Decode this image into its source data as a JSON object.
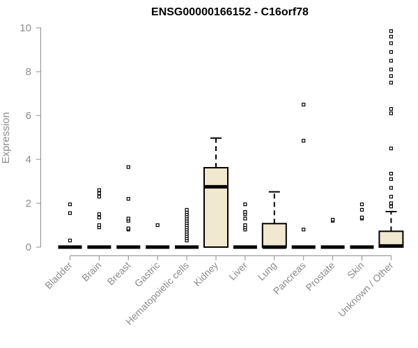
{
  "chart_data": {
    "type": "box",
    "title": "ENSG00000166152 - C16orf78",
    "ylabel": "Expression",
    "xlabel": "",
    "ylim": [
      0,
      10
    ],
    "yticks": [
      0,
      2,
      4,
      6,
      8,
      10
    ],
    "grid": false,
    "box_fill": "#f0e8cf",
    "categories": [
      "Bladder",
      "Brain",
      "Breast",
      "Gastric",
      "Hematopoietic cells",
      "Kidney",
      "Liver",
      "Lung",
      "Pancreas",
      "Prostate",
      "Skin",
      "Unknown / Other"
    ],
    "boxes": [
      {
        "category": "Bladder",
        "q1": 0,
        "median": 0,
        "q3": 0,
        "whisker_low": 0,
        "whisker_high": 0,
        "outliers": [
          0.3,
          1.55,
          1.95
        ]
      },
      {
        "category": "Brain",
        "q1": 0,
        "median": 0,
        "q3": 0,
        "whisker_low": 0,
        "whisker_high": 0,
        "outliers": [
          0.9,
          1.0,
          1.35,
          1.5,
          2.3,
          2.45,
          2.6
        ]
      },
      {
        "category": "Breast",
        "q1": 0,
        "median": 0,
        "q3": 0,
        "whisker_low": 0,
        "whisker_high": 0,
        "outliers": [
          0.8,
          0.85,
          1.2,
          1.3,
          2.2,
          3.65
        ]
      },
      {
        "category": "Gastric",
        "q1": 0,
        "median": 0,
        "q3": 0,
        "whisker_low": 0,
        "whisker_high": 0,
        "outliers": [
          1.0
        ]
      },
      {
        "category": "Hematopoietic cells",
        "q1": 0,
        "median": 0,
        "q3": 0,
        "whisker_low": 0,
        "whisker_high": 0,
        "outliers": [
          0.3,
          0.4,
          0.5,
          0.6,
          0.7,
          0.8,
          0.9,
          1.0,
          1.1,
          1.2,
          1.3,
          1.4,
          1.5,
          1.6,
          1.7
        ]
      },
      {
        "category": "Kidney",
        "q1": 0,
        "median": 2.75,
        "q3": 3.62,
        "whisker_low": 0,
        "whisker_high": 4.97,
        "outliers": []
      },
      {
        "category": "Liver",
        "q1": 0,
        "median": 0,
        "q3": 0,
        "whisker_low": 0,
        "whisker_high": 0,
        "outliers": [
          0.8,
          0.9,
          1.0,
          1.3,
          1.5,
          1.6,
          1.95
        ]
      },
      {
        "category": "Lung",
        "q1": 0,
        "median": 0,
        "q3": 1.07,
        "whisker_low": 0,
        "whisker_high": 2.52,
        "outliers": []
      },
      {
        "category": "Pancreas",
        "q1": 0,
        "median": 0,
        "q3": 0,
        "whisker_low": 0,
        "whisker_high": 0,
        "outliers": [
          0.8,
          4.85,
          6.5
        ]
      },
      {
        "category": "Prostate",
        "q1": 0,
        "median": 0,
        "q3": 0,
        "whisker_low": 0,
        "whisker_high": 0,
        "outliers": [
          1.2,
          1.25
        ]
      },
      {
        "category": "Skin",
        "q1": 0,
        "median": 0,
        "q3": 0,
        "whisker_low": 0,
        "whisker_high": 0,
        "outliers": [
          1.3,
          1.35,
          1.7,
          1.95
        ]
      },
      {
        "category": "Unknown / Other",
        "q1": 0,
        "median": 0.05,
        "q3": 0.72,
        "whisker_low": 0,
        "whisker_high": 1.62,
        "outliers": [
          1.85,
          2.0,
          2.3,
          2.7,
          3.1,
          3.35,
          4.5,
          6.1,
          6.3,
          7.5,
          7.8,
          8.1,
          8.5,
          8.9,
          9.3,
          9.6,
          9.85
        ]
      }
    ]
  }
}
